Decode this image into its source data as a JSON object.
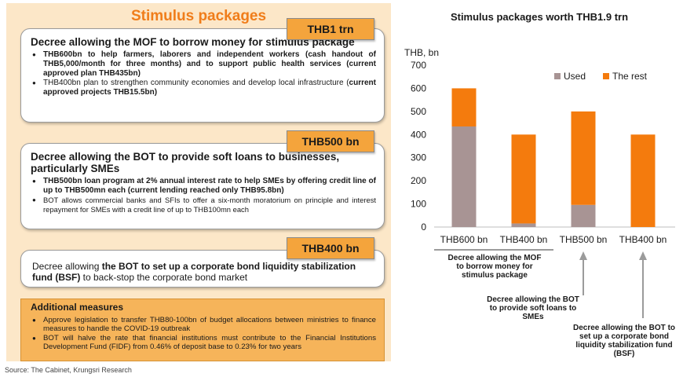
{
  "panel": {
    "title": "Stimulus packages",
    "card1": {
      "tag": "THB1 trn",
      "title": "Decree allowing the MOF to borrow money for stimulus package",
      "bullet1": "THB600bn to help farmers, laborers and independent workers (cash handout of THB5,000/month for three months) and to support public health services (current approved plan THB435bn)",
      "bullet2_a": "THB400bn plan to strengthen community economies and develop local infrastructure (",
      "bullet2_b": "current approved projects THB15.5bn)"
    },
    "card2": {
      "tag": "THB500 bn",
      "title": "Decree allowing the BOT to provide soft loans to businesses, particularly SMEs",
      "bullet1": "THB500bn loan program at 2% annual interest rate to help SMEs by offering credit line of up to THB500mn each (current lending reached only THB95.8bn)",
      "bullet2": "BOT allows commercial banks and SFIs to offer a six-month moratorium on principle and interest repayment for SMEs with a credit line of up to THB100mn each"
    },
    "card3": {
      "tag": "THB400 bn",
      "text_a": "Decree allowing ",
      "text_b": "the BOT to set up a corporate bond liquidity stabilization fund (BSF)",
      "text_c": " to back-stop the corporate bond market"
    },
    "additional": {
      "title": "Additional measures",
      "bullet1": "Approve legislation to transfer THB80-100bn of budget allocations between ministries to finance measures to handle the COVID-19 outbreak",
      "bullet2": "BOT will halve the rate that financial institutions must contribute to the Financial Institutions Development Fund (FIDF) from 0.46% of deposit base to 0.23% for two years"
    }
  },
  "source": "Source: The Cabinet, Krungsri Research",
  "annotations": {
    "mof": "Decree allowing the MOF to borrow money for stimulus package",
    "bot_loans": "Decree allowing the BOT to provide soft loans to SMEs",
    "bsf": "Decree allowing the BOT to set up a corporate bond liquidity stabilization fund (BSF)"
  },
  "colors": {
    "used": "#a89494",
    "rest": "#f47b0d",
    "tag": "#f4a43c",
    "panel": "#fce7c8",
    "additional": "#f6b45a"
  },
  "chart_data": {
    "type": "bar",
    "stacked": true,
    "title": "Stimulus packages worth THB1.9 trn",
    "ylabel": "THB, bn",
    "ylim": [
      0,
      700
    ],
    "yticks": [
      0,
      100,
      200,
      300,
      400,
      500,
      600,
      700
    ],
    "grid": false,
    "legend": "top-right",
    "categories": [
      "THB600 bn",
      "THB400 bn",
      "THB500 bn",
      "THB400 bn"
    ],
    "series": [
      {
        "name": "Used",
        "color": "#a89494",
        "values": [
          435,
          15.5,
          95.8,
          0
        ]
      },
      {
        "name": "The rest",
        "color": "#f47b0d",
        "values": [
          165,
          384.5,
          404.2,
          400
        ]
      }
    ]
  }
}
